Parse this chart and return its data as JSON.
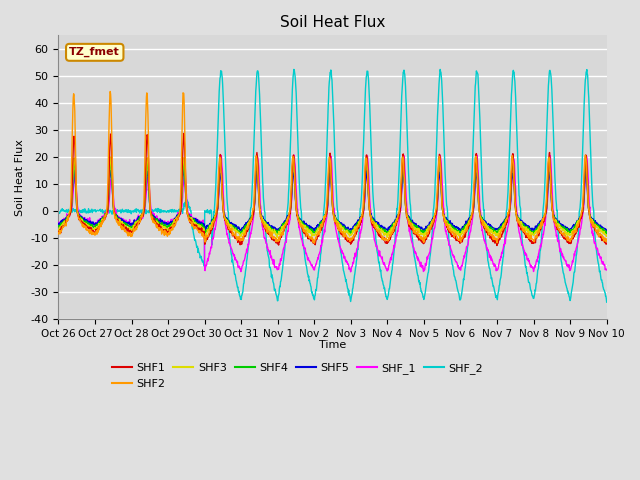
{
  "title": "Soil Heat Flux",
  "ylabel": "Soil Heat Flux",
  "xlabel": "Time",
  "ylim": [
    -40,
    65
  ],
  "xlim_days": [
    0,
    15
  ],
  "fig_bg_color": "#e0e0e0",
  "plot_bg_color": "#d8d8d8",
  "grid_color": "#ffffff",
  "series_colors": {
    "SHF1": "#dd0000",
    "SHF2": "#ff9900",
    "SHF3": "#dddd00",
    "SHF4": "#00cc00",
    "SHF5": "#0000dd",
    "SHF_1": "#ff00ff",
    "SHF_2": "#00cccc"
  },
  "xtick_labels": [
    "Oct 26",
    "Oct 27",
    "Oct 28",
    "Oct 29",
    "Oct 30",
    "Oct 31",
    "Nov 1",
    "Nov 2",
    "Nov 3",
    "Nov 4",
    "Nov 5",
    "Nov 6",
    "Nov 7",
    "Nov 8",
    "Nov 9",
    "Nov 10"
  ],
  "xtick_positions": [
    0,
    1,
    2,
    3,
    4,
    5,
    6,
    7,
    8,
    9,
    10,
    11,
    12,
    13,
    14,
    15
  ],
  "ytick_positions": [
    -40,
    -30,
    -20,
    -10,
    0,
    10,
    20,
    30,
    40,
    50,
    60
  ],
  "annotation_text": "TZ_fmet",
  "n_days": 15,
  "pts_per_day": 96
}
